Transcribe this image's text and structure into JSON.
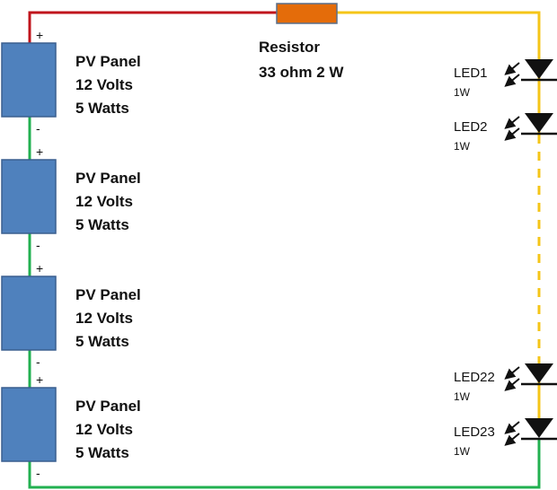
{
  "colors": {
    "positive_wire": "#c0141c",
    "led_wire": "#f5c518",
    "ground_wire": "#22b050",
    "panel": "#4f81bd",
    "resistor": "#e46c0a"
  },
  "resistor": {
    "line1": "Resistor",
    "line2": "33 ohm 2 W"
  },
  "panels": [
    {
      "name": "PV Panel",
      "voltage": "12 Volts",
      "power": "5 Watts",
      "plus": "+",
      "minus": "-"
    },
    {
      "name": "PV Panel",
      "voltage": "12 Volts",
      "power": "5 Watts",
      "plus": "+",
      "minus": "-"
    },
    {
      "name": "PV Panel",
      "voltage": "12 Volts",
      "power": "5 Watts",
      "plus": "+",
      "minus": "-"
    },
    {
      "name": "PV Panel",
      "voltage": "12 Volts",
      "power": "5 Watts",
      "plus": "+",
      "minus": "-"
    }
  ],
  "leds": [
    {
      "label": "LED1",
      "power": "1W"
    },
    {
      "label": "LED2",
      "power": "1W"
    },
    {
      "label": "LED22",
      "power": "1W"
    },
    {
      "label": "LED23",
      "power": "1W"
    }
  ]
}
